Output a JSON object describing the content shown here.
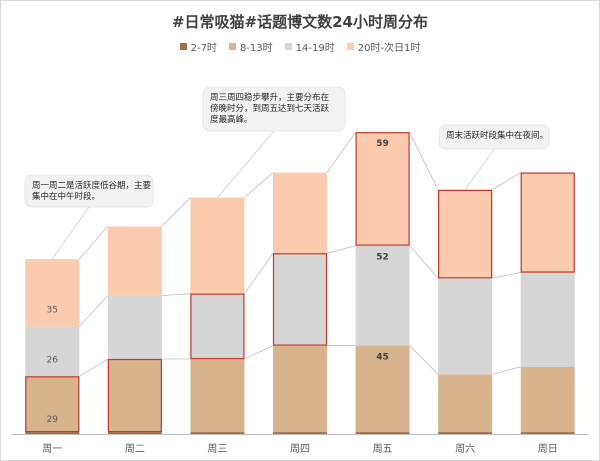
{
  "chart_data": {
    "type": "bar",
    "stacked": true,
    "title": "#日常吸猫#话题博文数24小时周分布",
    "categories": [
      "周一",
      "周二",
      "周三",
      "周四",
      "周五",
      "周六",
      "周日"
    ],
    "series": [
      {
        "name": "2-7时",
        "color": "#a0704a",
        "values": [
          1,
          1,
          1,
          1,
          1,
          1,
          1
        ]
      },
      {
        "name": "8-13时",
        "color": "#d7b48e",
        "values": [
          29,
          38,
          38,
          45,
          45,
          30,
          34
        ]
      },
      {
        "name": "14-19时",
        "color": "#d6d6d6",
        "values": [
          26,
          33,
          34,
          48,
          52,
          50,
          49
        ]
      },
      {
        "name": "20时-次日1时",
        "color": "#fbcbb0",
        "values": [
          35,
          36,
          50,
          42,
          59,
          46,
          52
        ]
      }
    ],
    "data_labels": [
      {
        "category": "周一",
        "series": "8-13时",
        "text": "29"
      },
      {
        "category": "周一",
        "series": "14-19时",
        "text": "26"
      },
      {
        "category": "周一",
        "series": "20时-次日1时",
        "text": "35"
      },
      {
        "category": "周五",
        "series": "8-13时",
        "text": "45"
      },
      {
        "category": "周五",
        "series": "14-19时",
        "text": "52"
      },
      {
        "category": "周五",
        "series": "20时-次日1时",
        "text": "59"
      }
    ],
    "highlights": [
      {
        "category": "周一",
        "series": "8-13时"
      },
      {
        "category": "周二",
        "series": "8-13时"
      },
      {
        "category": "周三",
        "series": "14-19时"
      },
      {
        "category": "周四",
        "series": "14-19时"
      },
      {
        "category": "周五",
        "series": "20时-次日1时"
      },
      {
        "category": "周六",
        "series": "20时-次日1时"
      },
      {
        "category": "周日",
        "series": "20时-次日1时"
      }
    ],
    "annotations": [
      {
        "text": [
          "周一周二是活跃度低谷期，主要",
          "集中在中午时段。"
        ]
      },
      {
        "text": [
          "周三周四稳步攀升，主要分布在",
          "傍晚时分，到周五达到七天活跃",
          "度最高峰。"
        ]
      },
      {
        "text": [
          "周末活跃时段集中在夜间。"
        ]
      }
    ],
    "ylim": [
      0,
      180
    ],
    "grid": false,
    "legend_position": "top"
  }
}
